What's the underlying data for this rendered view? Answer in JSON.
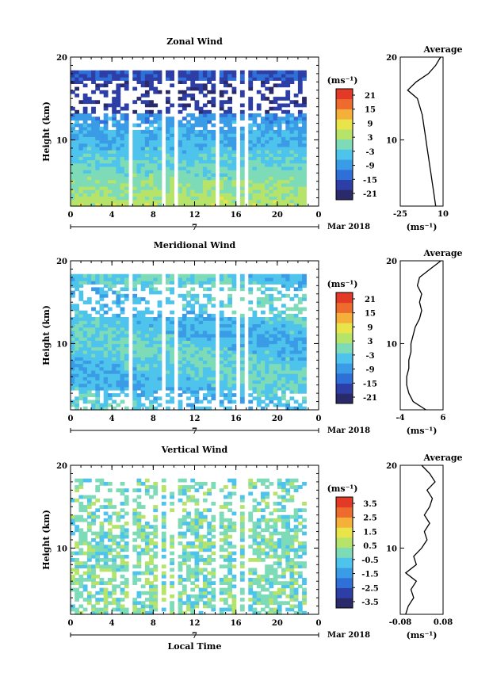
{
  "figure": {
    "date_label": "Mar 2018",
    "day_label": "7",
    "xlabel": "Local Time",
    "ylabel": "Height (km)",
    "unit_label": "(ms⁻¹)",
    "profile_title": "Average",
    "profile_xlabel": "(ms⁻¹)"
  },
  "colors": {
    "colormap": [
      "#2a2a6a",
      "#2d3fa6",
      "#2f6fd8",
      "#3a9be6",
      "#4ec3ec",
      "#7edbb8",
      "#b6e46a",
      "#e8e44a",
      "#f5b03a",
      "#ee6b2e",
      "#e23a26"
    ]
  },
  "chart_data": [
    {
      "type": "heatmap",
      "title": "Zonal Wind",
      "ylabel": "Height (km)",
      "xlim": [
        0,
        24
      ],
      "ylim": [
        2,
        20
      ],
      "x_ticks": [
        "0",
        "4",
        "8",
        "12",
        "16",
        "20",
        "0"
      ],
      "y_ticks": [
        "10",
        "20"
      ],
      "colorbar_ticks": [
        "21",
        "15",
        "9",
        "3",
        "-3",
        "-9",
        "-15",
        "-21"
      ],
      "colorbar_range": [
        -24,
        24
      ],
      "data_gaps_hours": [
        [
          5.6,
          6.0
        ],
        [
          8.8,
          9.2
        ],
        [
          10.0,
          10.4
        ],
        [
          14.0,
          14.4
        ],
        [
          16.0,
          16.4
        ],
        [
          16.8,
          17.2
        ]
      ],
      "profile": {
        "title": "Average",
        "xlim": [
          -25,
          10
        ],
        "x_ticks": [
          "-25",
          "10"
        ],
        "heights": [
          2,
          3,
          4,
          5,
          6,
          7,
          8,
          9,
          10,
          11,
          12,
          13,
          14,
          15,
          16,
          17,
          18,
          19,
          20
        ],
        "values": [
          4,
          3,
          2,
          1,
          0,
          -1,
          -2,
          -3,
          -4,
          -5,
          -6,
          -7,
          -9,
          -11,
          -19,
          -12,
          -2,
          4,
          8
        ]
      }
    },
    {
      "type": "heatmap",
      "title": "Meridional Wind",
      "ylabel": "Height (km)",
      "xlim": [
        0,
        24
      ],
      "ylim": [
        2,
        20
      ],
      "x_ticks": [
        "0",
        "4",
        "8",
        "12",
        "16",
        "20",
        "0"
      ],
      "y_ticks": [
        "10",
        "20"
      ],
      "colorbar_ticks": [
        "21",
        "15",
        "9",
        "3",
        "-3",
        "-9",
        "-15",
        "-21"
      ],
      "colorbar_range": [
        -24,
        24
      ],
      "data_gaps_hours": [
        [
          5.6,
          6.0
        ],
        [
          8.8,
          9.2
        ],
        [
          10.0,
          10.4
        ],
        [
          14.0,
          14.4
        ],
        [
          16.0,
          16.4
        ],
        [
          16.8,
          17.2
        ]
      ],
      "profile": {
        "title": "Average",
        "xlim": [
          -4,
          6
        ],
        "x_ticks": [
          "-4",
          "6"
        ],
        "heights": [
          2,
          3,
          4,
          5,
          6,
          7,
          8,
          9,
          10,
          11,
          12,
          13,
          14,
          15,
          16,
          17,
          18,
          19,
          20
        ],
        "values": [
          2,
          -1,
          -2,
          -2.5,
          -2.5,
          -2,
          -2,
          -1.5,
          -1.5,
          -1,
          -0.5,
          0.5,
          1,
          0.5,
          1,
          0,
          0.5,
          3,
          5.5
        ]
      }
    },
    {
      "type": "heatmap",
      "title": "Vertical Wind",
      "ylabel": "Height (km)",
      "xlabel": "Local Time",
      "xlim": [
        0,
        24
      ],
      "ylim": [
        2,
        20
      ],
      "x_ticks": [
        "0",
        "4",
        "8",
        "12",
        "16",
        "20",
        "0"
      ],
      "y_ticks": [
        "10",
        "20"
      ],
      "colorbar_ticks": [
        "3.5",
        "2.5",
        "1.5",
        "0.5",
        "-0.5",
        "-1.5",
        "-2.5",
        "-3.5"
      ],
      "colorbar_range": [
        -4,
        4
      ],
      "data_gaps_hours": [
        [
          5.6,
          6.0
        ],
        [
          8.4,
          8.8
        ],
        [
          9.2,
          9.6
        ],
        [
          10.0,
          10.4
        ],
        [
          14.0,
          14.4
        ],
        [
          16.0,
          16.4
        ],
        [
          16.8,
          17.2
        ]
      ],
      "profile": {
        "title": "Average",
        "xlim": [
          -0.08,
          0.08
        ],
        "x_ticks": [
          "-0.08",
          "0.08"
        ],
        "heights": [
          2,
          3,
          4,
          5,
          6,
          7,
          8,
          9,
          10,
          11,
          12,
          13,
          14,
          15,
          16,
          17,
          18,
          19,
          20
        ],
        "values": [
          -0.06,
          -0.05,
          -0.03,
          -0.04,
          -0.02,
          -0.06,
          -0.02,
          -0.03,
          0.0,
          0.02,
          0.01,
          0.03,
          0.01,
          0.03,
          0.04,
          0.02,
          0.05,
          0.03,
          0.0
        ]
      }
    }
  ]
}
